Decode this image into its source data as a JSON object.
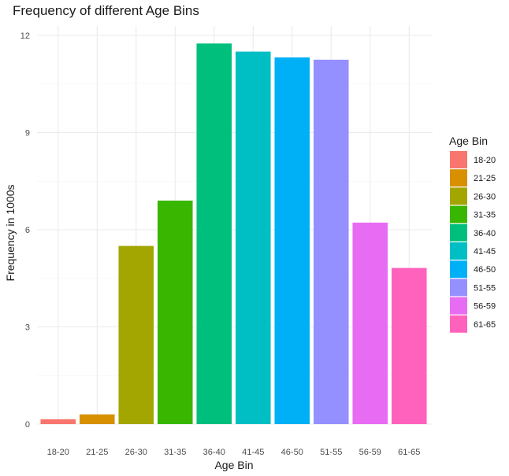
{
  "chart_data": {
    "type": "bar",
    "title": "Frequency of different Age Bins",
    "xlabel": "Age Bin",
    "ylabel": "Frequency in 1000s",
    "categories": [
      "18-20",
      "21-25",
      "26-30",
      "31-35",
      "36-40",
      "41-45",
      "46-50",
      "51-55",
      "56-59",
      "61-65"
    ],
    "values": [
      0.15,
      0.3,
      5.5,
      6.9,
      11.75,
      11.5,
      11.32,
      11.25,
      6.22,
      4.82
    ],
    "colors": [
      "#F8766D",
      "#D89000",
      "#A3A500",
      "#39B600",
      "#00BF7D",
      "#00BFC4",
      "#00B0F6",
      "#9590FF",
      "#E76BF3",
      "#FF62BC"
    ],
    "ylim": [
      0,
      12.3
    ],
    "yticks": [
      0,
      3,
      6,
      9,
      12
    ],
    "grid": true,
    "legend": {
      "title": "Age Bin",
      "placement": "right",
      "items": [
        "18-20",
        "21-25",
        "26-30",
        "31-35",
        "36-40",
        "41-45",
        "46-50",
        "51-55",
        "56-59",
        "61-65"
      ]
    }
  }
}
